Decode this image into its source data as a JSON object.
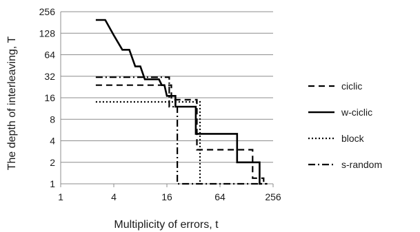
{
  "chart_data": {
    "type": "line",
    "xlabel": "Multiplicity  of errors, t",
    "ylabel": "The depth of interleaving,  T",
    "x_scale": "log2",
    "y_scale": "log2",
    "xlim": [
      1,
      256
    ],
    "ylim": [
      1,
      256
    ],
    "x_ticks": [
      "1",
      "4",
      "16",
      "64",
      "256"
    ],
    "y_ticks": [
      "256",
      "128",
      "64",
      "32",
      "16",
      "8",
      "4",
      "2",
      "1"
    ],
    "grid": "horizontal",
    "legend_position": "right",
    "series": [
      {
        "name": "ciclic",
        "style": "dashed",
        "x": [
          2.5,
          18,
          18,
          35,
          35,
          150,
          150,
          200,
          200
        ],
        "y": [
          24,
          24,
          15,
          15,
          3,
          3,
          1.2,
          1.2,
          1
        ]
      },
      {
        "name": "w-ciclic",
        "style": "solid",
        "x": [
          2.5,
          3.2,
          4,
          5,
          6,
          7,
          8,
          9,
          10,
          11,
          12,
          13,
          14,
          15,
          16,
          20,
          20,
          24,
          24,
          34,
          34,
          38,
          38,
          100,
          100,
          180,
          180,
          190
        ],
        "y": [
          196,
          196,
          120,
          75,
          75,
          44,
          44,
          29,
          29,
          29,
          29,
          29,
          24,
          24,
          17,
          17,
          12,
          12,
          12,
          12,
          5,
          5,
          5,
          5,
          2,
          2,
          1,
          1
        ],
        "order_note": ""
      },
      {
        "name": "block",
        "style": "dotted",
        "x": [
          2.5,
          38,
          38
        ],
        "y": [
          14,
          14,
          1
        ]
      },
      {
        "name": "s-random",
        "style": "dashdot",
        "x": [
          2.5,
          17,
          17,
          21,
          21,
          22,
          22,
          220
        ],
        "y": [
          31,
          31,
          12,
          12,
          1,
          1,
          1,
          1
        ]
      }
    ]
  }
}
